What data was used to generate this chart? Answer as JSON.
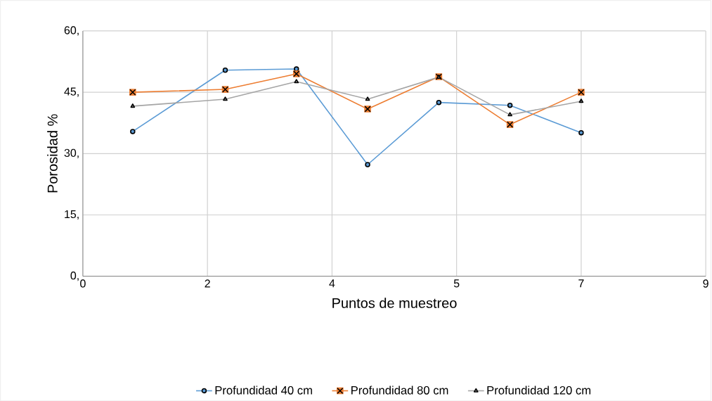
{
  "chart_data": {
    "type": "line",
    "xlabel": "Puntos de muestreo",
    "ylabel": "Porosidad %",
    "x": [
      0.7,
      2,
      3,
      4,
      5,
      6,
      7
    ],
    "series": [
      {
        "name": "Profundidad 40 cm",
        "color": "#5b9bd5",
        "marker": "circle",
        "values": [
          35.4,
          50.4,
          50.7,
          27.3,
          42.5,
          41.8,
          35.1
        ]
      },
      {
        "name": "Profundidad 80 cm",
        "color": "#ed7d31",
        "marker": "square",
        "values": [
          45.0,
          45.7,
          49.5,
          40.9,
          48.8,
          37.1,
          45.0
        ]
      },
      {
        "name": "Profundidad 120 cm",
        "color": "#a5a5a5",
        "marker": "triangle",
        "values": [
          41.6,
          43.3,
          47.6,
          43.3,
          48.7,
          39.5,
          42.8
        ]
      }
    ],
    "xlim": [
      0,
      8.75
    ],
    "xticks": [
      0,
      {
        "value": 1.75,
        "label": "2"
      },
      {
        "value": 3.5,
        "label": "4"
      },
      {
        "value": 5.25,
        "label": "5"
      },
      {
        "value": 7,
        "label": "7"
      },
      {
        "value": 8.75,
        "label": "9"
      }
    ],
    "ylim": [
      0,
      60
    ],
    "yticks": [
      {
        "value": 0,
        "label": "0,"
      },
      {
        "value": 15,
        "label": "15,"
      },
      {
        "value": 30,
        "label": "30,"
      },
      {
        "value": 45,
        "label": "45,"
      },
      {
        "value": 60,
        "label": "60,"
      }
    ],
    "grid": true,
    "legend": "bottom"
  }
}
